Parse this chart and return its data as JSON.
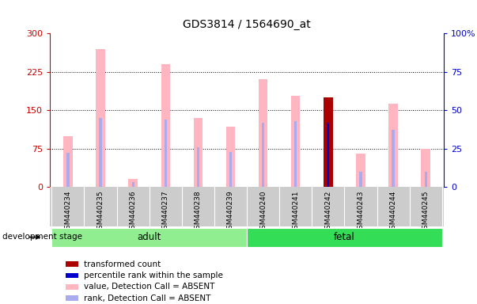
{
  "title": "GDS3814 / 1564690_at",
  "samples": [
    "GSM440234",
    "GSM440235",
    "GSM440236",
    "GSM440237",
    "GSM440238",
    "GSM440239",
    "GSM440240",
    "GSM440241",
    "GSM440242",
    "GSM440243",
    "GSM440244",
    "GSM440245"
  ],
  "pink_bar_heights": [
    100,
    270,
    15,
    240,
    135,
    118,
    210,
    178,
    0,
    65,
    162,
    74
  ],
  "blue_bar_heights": [
    22,
    45,
    3,
    44,
    26,
    23,
    42,
    43,
    0,
    10,
    37,
    10
  ],
  "red_bar_heights": [
    0,
    0,
    0,
    0,
    0,
    0,
    0,
    0,
    175,
    0,
    0,
    0
  ],
  "darkblue_bar_heights": [
    0,
    0,
    0,
    0,
    0,
    0,
    0,
    0,
    42,
    0,
    0,
    0
  ],
  "groups": {
    "adult": [
      0,
      1,
      2,
      3,
      4,
      5
    ],
    "fetal": [
      6,
      7,
      8,
      9,
      10,
      11
    ]
  },
  "adult_color": "#90EE90",
  "fetal_color": "#33DD55",
  "ylim_left": [
    0,
    300
  ],
  "ylim_right": [
    0,
    100
  ],
  "yticks_left": [
    0,
    75,
    150,
    225,
    300
  ],
  "yticks_right": [
    0,
    25,
    50,
    75,
    100
  ],
  "pink_color": "#FFB6C1",
  "blue_color": "#AAAAEE",
  "red_color": "#AA0000",
  "darkblue_color": "#0000CC",
  "left_axis_color": "#CC0000",
  "right_axis_color": "#0000CC",
  "legend_items": [
    {
      "label": "transformed count",
      "color": "#AA0000"
    },
    {
      "label": "percentile rank within the sample",
      "color": "#0000CC"
    },
    {
      "label": "value, Detection Call = ABSENT",
      "color": "#FFB6C1"
    },
    {
      "label": "rank, Detection Call = ABSENT",
      "color": "#AAAAEE"
    }
  ],
  "dev_stage_label": "development stage",
  "group_label_adult": "adult",
  "group_label_fetal": "fetal"
}
